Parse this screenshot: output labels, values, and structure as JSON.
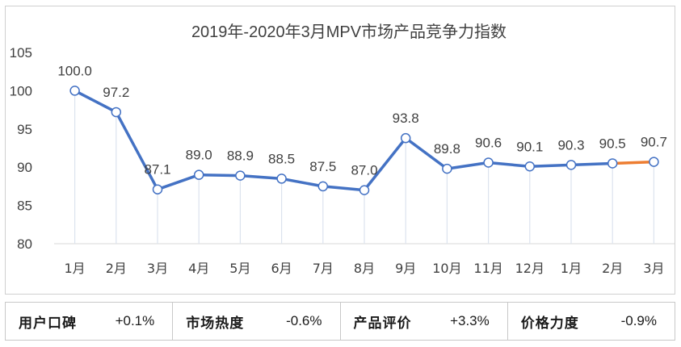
{
  "chart_data": {
    "type": "line",
    "title": "2019年-2020年3月MPV市场产品竞争力指数",
    "categories": [
      "1月",
      "2月",
      "3月",
      "4月",
      "5月",
      "6月",
      "7月",
      "8月",
      "9月",
      "10月",
      "11月",
      "12月",
      "1月",
      "2月",
      "3月"
    ],
    "series": [
      {
        "values": [
          100.0,
          97.2,
          87.1,
          89.0,
          88.9,
          88.5,
          87.5,
          87.0,
          93.8,
          89.8,
          90.6,
          90.1,
          90.3,
          90.5,
          90.7
        ]
      }
    ],
    "data_labels": [
      "100.0",
      "97.2",
      "87.1",
      "89.0",
      "88.9",
      "88.5",
      "87.5",
      "87.0",
      "93.8",
      "89.8",
      "90.6",
      "90.1",
      "90.3",
      "90.5",
      "90.7"
    ],
    "ylim": [
      80,
      105
    ],
    "yticks": [
      80,
      85,
      90,
      95,
      100,
      105
    ],
    "ytick_labels": [
      "80",
      "85",
      "90",
      "95",
      "100",
      "105"
    ],
    "line_color": "#4472C4",
    "highlight_last_segment_color": "#ED7D31",
    "marker_fill": "#ffffff",
    "grid": false,
    "legend": "none"
  },
  "stats": [
    {
      "label": "用户口碑",
      "value": "+0.1%"
    },
    {
      "label": "市场热度",
      "value": "-0.6%"
    },
    {
      "label": "产品评价",
      "value": "+3.3%"
    },
    {
      "label": "价格力度",
      "value": "-0.9%"
    }
  ]
}
